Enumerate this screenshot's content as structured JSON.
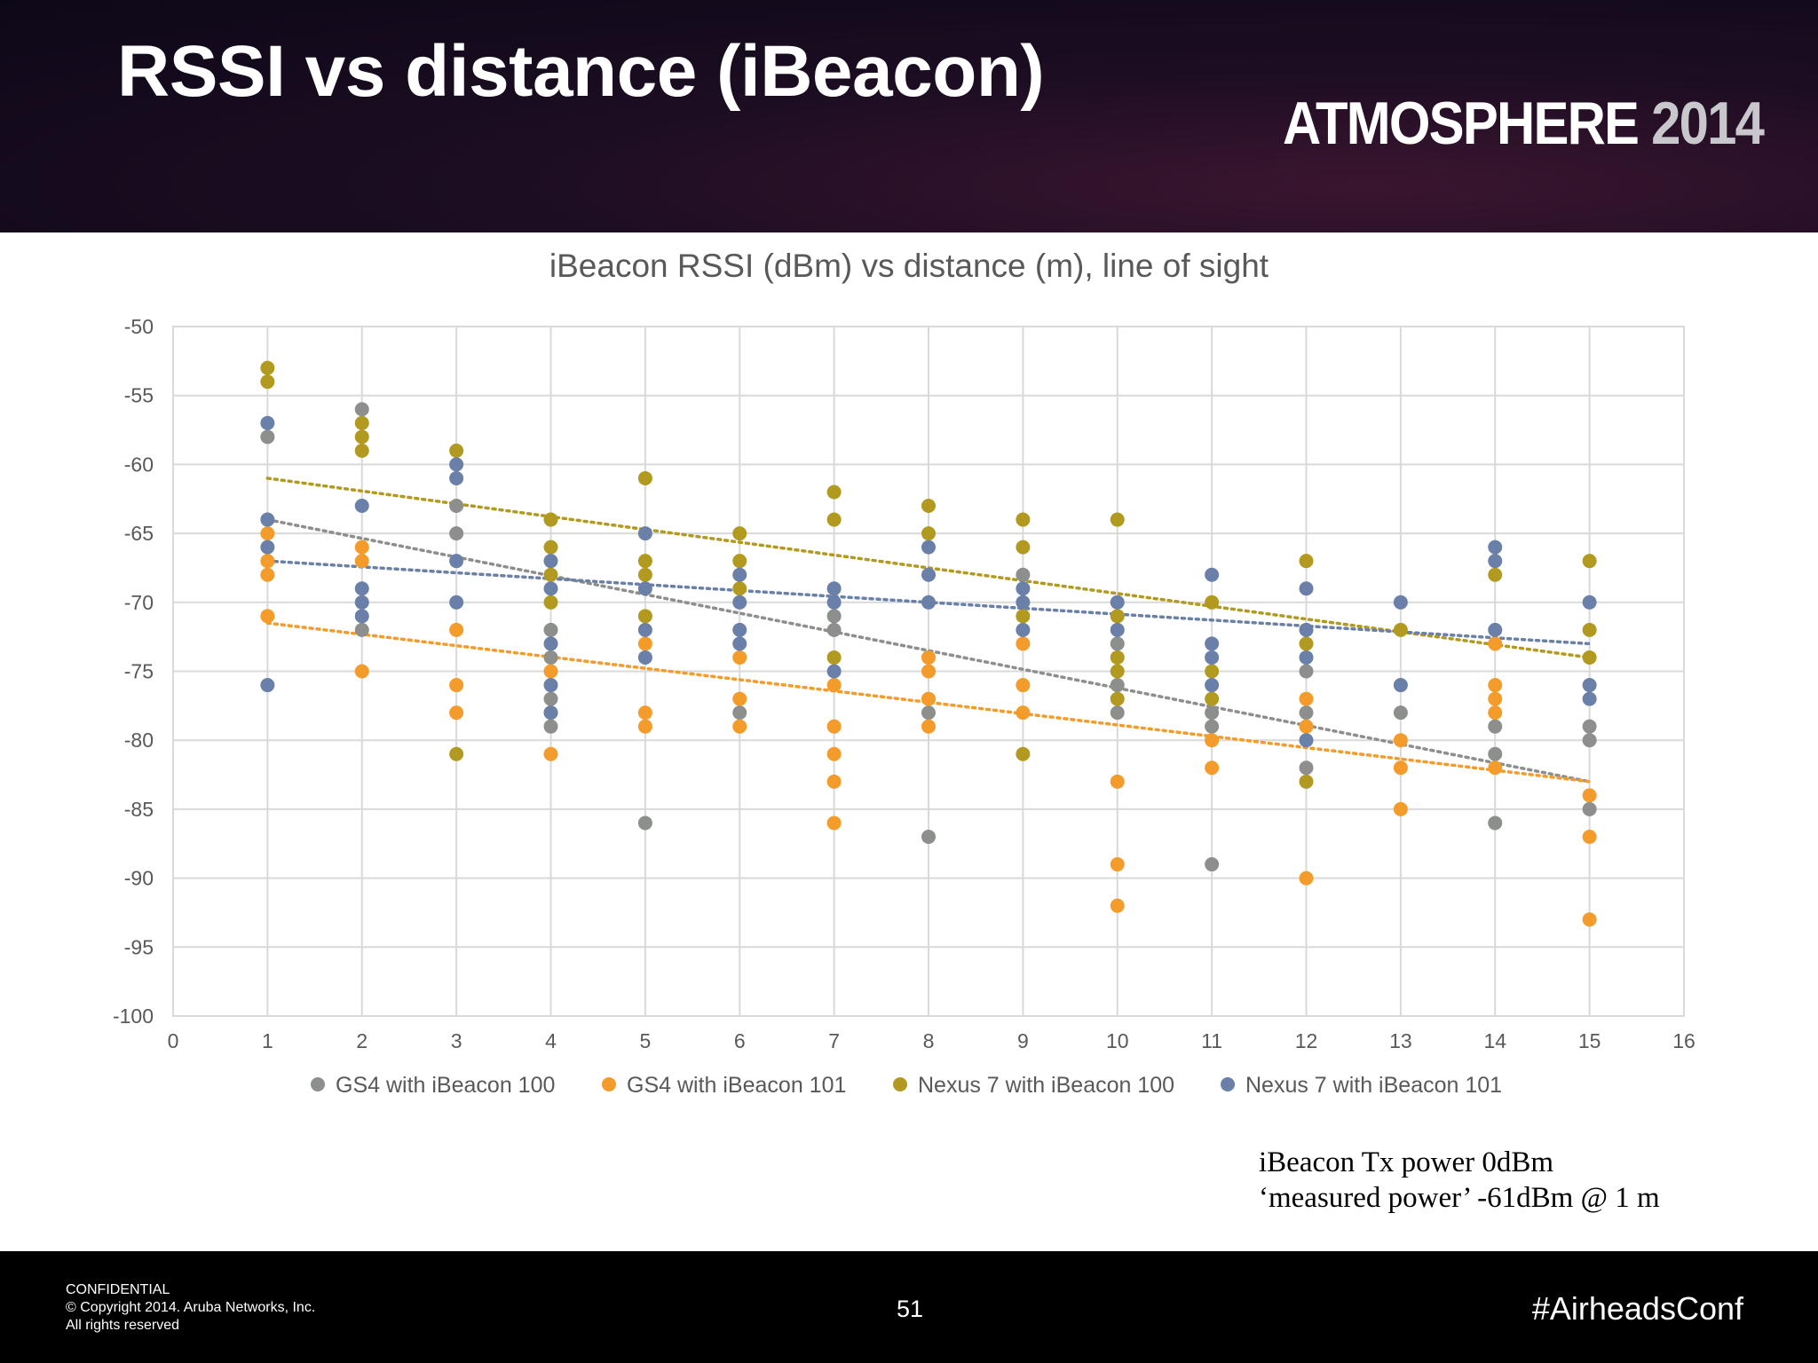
{
  "slide": {
    "title": "RSSI vs distance (iBeacon)",
    "logo_word": "ATMOSPHERE",
    "logo_year": "2014",
    "note_lines": [
      "iBeacon Tx power 0dBm",
      "‘measured power’ -61dBm @ 1 m"
    ],
    "footer": {
      "legal": [
        "CONFIDENTIAL",
        "© Copyright 2014. Aruba Networks, Inc.",
        "All rights reserved"
      ],
      "page_number": "51",
      "hashtag": "#AirheadsConf"
    }
  },
  "chart_data": {
    "type": "scatter",
    "title": "iBeacon RSSI (dBm) vs distance (m), line of sight",
    "xlabel": "",
    "ylabel": "",
    "xlim": [
      0,
      16
    ],
    "ylim": [
      -100,
      -50
    ],
    "xticks": [
      0,
      1,
      2,
      3,
      4,
      5,
      6,
      7,
      8,
      9,
      10,
      11,
      12,
      13,
      14,
      15,
      16
    ],
    "yticks": [
      -50,
      -55,
      -60,
      -65,
      -70,
      -75,
      -80,
      -85,
      -90,
      -95,
      -100
    ],
    "grid": true,
    "legend_position": "bottom",
    "trendlines": "linear, dotted, one per series",
    "series": [
      {
        "name": "GS4 with iBeacon 100",
        "color": "#8c8f8c",
        "points": [
          [
            1,
            -58
          ],
          [
            2,
            -56
          ],
          [
            2,
            -72
          ],
          [
            3,
            -63
          ],
          [
            3,
            -65
          ],
          [
            4,
            -72
          ],
          [
            4,
            -74
          ],
          [
            4,
            -77
          ],
          [
            4,
            -78
          ],
          [
            4,
            -79
          ],
          [
            5,
            -86
          ],
          [
            6,
            -78
          ],
          [
            7,
            -71
          ],
          [
            7,
            -72
          ],
          [
            8,
            -78
          ],
          [
            8,
            -87
          ],
          [
            9,
            -68
          ],
          [
            10,
            -73
          ],
          [
            10,
            -76
          ],
          [
            10,
            -78
          ],
          [
            11,
            -78
          ],
          [
            11,
            -79
          ],
          [
            11,
            -89
          ],
          [
            12,
            -75
          ],
          [
            12,
            -78
          ],
          [
            12,
            -82
          ],
          [
            13,
            -78
          ],
          [
            14,
            -79
          ],
          [
            14,
            -81
          ],
          [
            14,
            -86
          ],
          [
            15,
            -79
          ],
          [
            15,
            -80
          ],
          [
            15,
            -85
          ]
        ],
        "trend": [
          [
            1,
            -64
          ],
          [
            15,
            -83
          ]
        ]
      },
      {
        "name": "GS4 with iBeacon 101",
        "color": "#f39c2b",
        "points": [
          [
            1,
            -65
          ],
          [
            1,
            -67
          ],
          [
            1,
            -68
          ],
          [
            1,
            -71
          ],
          [
            2,
            -66
          ],
          [
            2,
            -67
          ],
          [
            2,
            -75
          ],
          [
            3,
            -72
          ],
          [
            3,
            -76
          ],
          [
            3,
            -78
          ],
          [
            4,
            -75
          ],
          [
            4,
            -81
          ],
          [
            5,
            -73
          ],
          [
            5,
            -78
          ],
          [
            5,
            -79
          ],
          [
            6,
            -74
          ],
          [
            6,
            -77
          ],
          [
            6,
            -79
          ],
          [
            7,
            -76
          ],
          [
            7,
            -79
          ],
          [
            7,
            -81
          ],
          [
            7,
            -83
          ],
          [
            7,
            -86
          ],
          [
            8,
            -74
          ],
          [
            8,
            -75
          ],
          [
            8,
            -77
          ],
          [
            8,
            -79
          ],
          [
            9,
            -73
          ],
          [
            9,
            -76
          ],
          [
            9,
            -78
          ],
          [
            10,
            -83
          ],
          [
            10,
            -89
          ],
          [
            10,
            -92
          ],
          [
            11,
            -80
          ],
          [
            11,
            -82
          ],
          [
            12,
            -77
          ],
          [
            12,
            -79
          ],
          [
            12,
            -90
          ],
          [
            13,
            -80
          ],
          [
            13,
            -82
          ],
          [
            13,
            -85
          ],
          [
            14,
            -73
          ],
          [
            14,
            -76
          ],
          [
            14,
            -77
          ],
          [
            14,
            -78
          ],
          [
            14,
            -82
          ],
          [
            15,
            -84
          ],
          [
            15,
            -87
          ],
          [
            15,
            -93
          ]
        ],
        "trend": [
          [
            1,
            -71.5
          ],
          [
            15,
            -83
          ]
        ]
      },
      {
        "name": "Nexus 7 with iBeacon 100",
        "color": "#b29a21",
        "points": [
          [
            1,
            -53
          ],
          [
            1,
            -54
          ],
          [
            2,
            -57
          ],
          [
            2,
            -58
          ],
          [
            2,
            -59
          ],
          [
            3,
            -59
          ],
          [
            3,
            -81
          ],
          [
            4,
            -64
          ],
          [
            4,
            -66
          ],
          [
            4,
            -68
          ],
          [
            4,
            -70
          ],
          [
            5,
            -61
          ],
          [
            5,
            -67
          ],
          [
            5,
            -68
          ],
          [
            5,
            -71
          ],
          [
            6,
            -65
          ],
          [
            6,
            -67
          ],
          [
            6,
            -69
          ],
          [
            7,
            -62
          ],
          [
            7,
            -64
          ],
          [
            7,
            -74
          ],
          [
            8,
            -63
          ],
          [
            8,
            -65
          ],
          [
            9,
            -64
          ],
          [
            9,
            -66
          ],
          [
            9,
            -71
          ],
          [
            9,
            -81
          ],
          [
            10,
            -64
          ],
          [
            10,
            -71
          ],
          [
            10,
            -74
          ],
          [
            10,
            -75
          ],
          [
            10,
            -77
          ],
          [
            11,
            -70
          ],
          [
            11,
            -75
          ],
          [
            11,
            -77
          ],
          [
            12,
            -67
          ],
          [
            12,
            -73
          ],
          [
            12,
            -83
          ],
          [
            13,
            -72
          ],
          [
            14,
            -68
          ],
          [
            15,
            -67
          ],
          [
            15,
            -72
          ],
          [
            15,
            -74
          ]
        ],
        "trend": [
          [
            1,
            -61
          ],
          [
            15,
            -74
          ]
        ]
      },
      {
        "name": "Nexus 7 with iBeacon 101",
        "color": "#6a80a8",
        "points": [
          [
            1,
            -57
          ],
          [
            1,
            -64
          ],
          [
            1,
            -66
          ],
          [
            1,
            -76
          ],
          [
            2,
            -63
          ],
          [
            2,
            -69
          ],
          [
            2,
            -70
          ],
          [
            2,
            -71
          ],
          [
            3,
            -60
          ],
          [
            3,
            -61
          ],
          [
            3,
            -67
          ],
          [
            3,
            -70
          ],
          [
            4,
            -67
          ],
          [
            4,
            -69
          ],
          [
            4,
            -73
          ],
          [
            4,
            -76
          ],
          [
            4,
            -78
          ],
          [
            5,
            -65
          ],
          [
            5,
            -69
          ],
          [
            5,
            -72
          ],
          [
            5,
            -74
          ],
          [
            6,
            -68
          ],
          [
            6,
            -70
          ],
          [
            6,
            -72
          ],
          [
            6,
            -73
          ],
          [
            7,
            -69
          ],
          [
            7,
            -70
          ],
          [
            7,
            -75
          ],
          [
            8,
            -66
          ],
          [
            8,
            -68
          ],
          [
            8,
            -70
          ],
          [
            9,
            -69
          ],
          [
            9,
            -70
          ],
          [
            9,
            -72
          ],
          [
            10,
            -70
          ],
          [
            10,
            -72
          ],
          [
            11,
            -68
          ],
          [
            11,
            -73
          ],
          [
            11,
            -74
          ],
          [
            11,
            -76
          ],
          [
            12,
            -69
          ],
          [
            12,
            -72
          ],
          [
            12,
            -74
          ],
          [
            12,
            -80
          ],
          [
            13,
            -70
          ],
          [
            13,
            -76
          ],
          [
            14,
            -66
          ],
          [
            14,
            -67
          ],
          [
            14,
            -72
          ],
          [
            15,
            -70
          ],
          [
            15,
            -76
          ],
          [
            15,
            -77
          ]
        ],
        "trend": [
          [
            1,
            -67
          ],
          [
            15,
            -73
          ]
        ]
      }
    ]
  }
}
